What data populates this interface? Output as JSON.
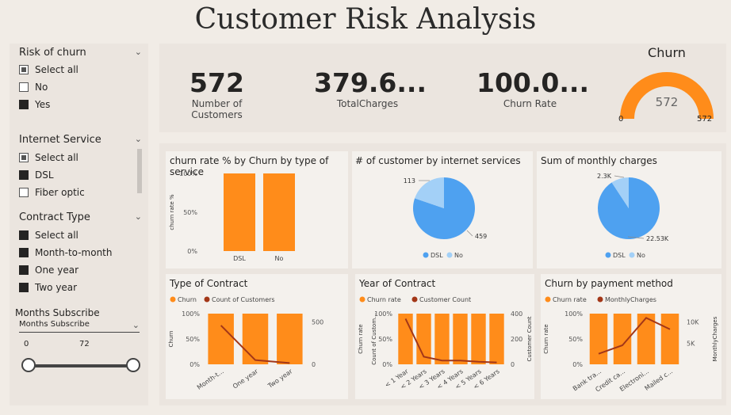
{
  "title": "Customer Risk Analysis",
  "colors": {
    "orange": "#ff8c1a",
    "dark_line": "#a33718",
    "blue": "#4ea1f0",
    "light_blue": "#a3d0f7"
  },
  "filters": {
    "risk": {
      "title": "Risk of churn",
      "options": [
        "Select all",
        "No",
        "Yes"
      ]
    },
    "internet": {
      "title": "Internet Service",
      "options": [
        "Select all",
        "DSL",
        "Fiber optic"
      ]
    },
    "contract": {
      "title": "Contract Type",
      "options": [
        "Select all",
        "Month-to-month",
        "One year",
        "Two year"
      ]
    },
    "months": {
      "title": "Months Subscribe",
      "dropdown": "Months Subscribe",
      "min": "0",
      "max": "72"
    }
  },
  "kpis": {
    "customers": {
      "value": "572",
      "label": "Number of Customers"
    },
    "charges": {
      "value": "379.6...",
      "label": "TotalCharges"
    },
    "churn_rate": {
      "value": "100.0...",
      "label": "Churn Rate"
    }
  },
  "gauge": {
    "title": "Churn",
    "value": "572",
    "min": "0",
    "max": "572",
    "fill_fraction": 1.0
  },
  "chart_data": [
    {
      "type": "bar",
      "title": "churn rate % by Churn by type of service",
      "ylabel": "churn rate %",
      "categories": [
        "DSL",
        "No"
      ],
      "values": [
        100,
        100
      ],
      "ticks": [
        "0%",
        "50%",
        "100%"
      ]
    },
    {
      "type": "pie",
      "title": "# of customer by internet services",
      "labels": [
        "DSL",
        "No"
      ],
      "values": [
        459,
        113
      ],
      "data_labels": [
        "459",
        "113"
      ]
    },
    {
      "type": "pie",
      "title": "Sum of monthly charges",
      "labels": [
        "DSL",
        "No"
      ],
      "values": [
        22530,
        2300
      ],
      "data_labels": [
        "22.53K",
        "2.3K"
      ]
    },
    {
      "type": "bar",
      "title": "Type of Contract",
      "series": [
        {
          "name": "Churn",
          "values": [
            100,
            100,
            100
          ]
        },
        {
          "name": "Count of Customers",
          "values": [
            460,
            50,
            15
          ]
        }
      ],
      "categories": [
        "Month-t...",
        "One year",
        "Two year"
      ],
      "ylabel": "Churn",
      "y2label": "",
      "left_ticks": [
        "0%",
        "50%",
        "100%"
      ],
      "right_ticks": [
        "0",
        "500"
      ]
    },
    {
      "type": "bar",
      "title": "Year of Contract",
      "series": [
        {
          "name": "Churn rate",
          "values": [
            100,
            100,
            100,
            100,
            100,
            100
          ]
        },
        {
          "name": "Customer Count",
          "values": [
            360,
            60,
            30,
            30,
            20,
            15
          ]
        }
      ],
      "categories": [
        "< 1 Year",
        "< 2 Years",
        "< 3 Years",
        "< 4 Years",
        "< 5 Years",
        "< 6 Years"
      ],
      "ylabel": "Churn rate",
      "y2label": "Count of Custom...",
      "y3label": "Customer Count",
      "left_ticks": [
        "0%",
        "50%",
        "100%"
      ],
      "right_ticks": [
        "0",
        "200",
        "400"
      ]
    },
    {
      "type": "bar",
      "title": "Churn by payment method",
      "series": [
        {
          "name": "Churn rate",
          "values": [
            100,
            100,
            100,
            100
          ]
        },
        {
          "name": "MonthlyCharges",
          "values": [
            2500,
            4500,
            11000,
            8300
          ]
        }
      ],
      "categories": [
        "Bank tra...",
        "Credit ca...",
        "Electroni...",
        "Mailed c..."
      ],
      "ylabel": "Churn rate",
      "y2label": "MonthlyCharges",
      "left_ticks": [
        "0%",
        "50%",
        "100%"
      ],
      "right_ticks": [
        "5K",
        "10K"
      ]
    }
  ]
}
